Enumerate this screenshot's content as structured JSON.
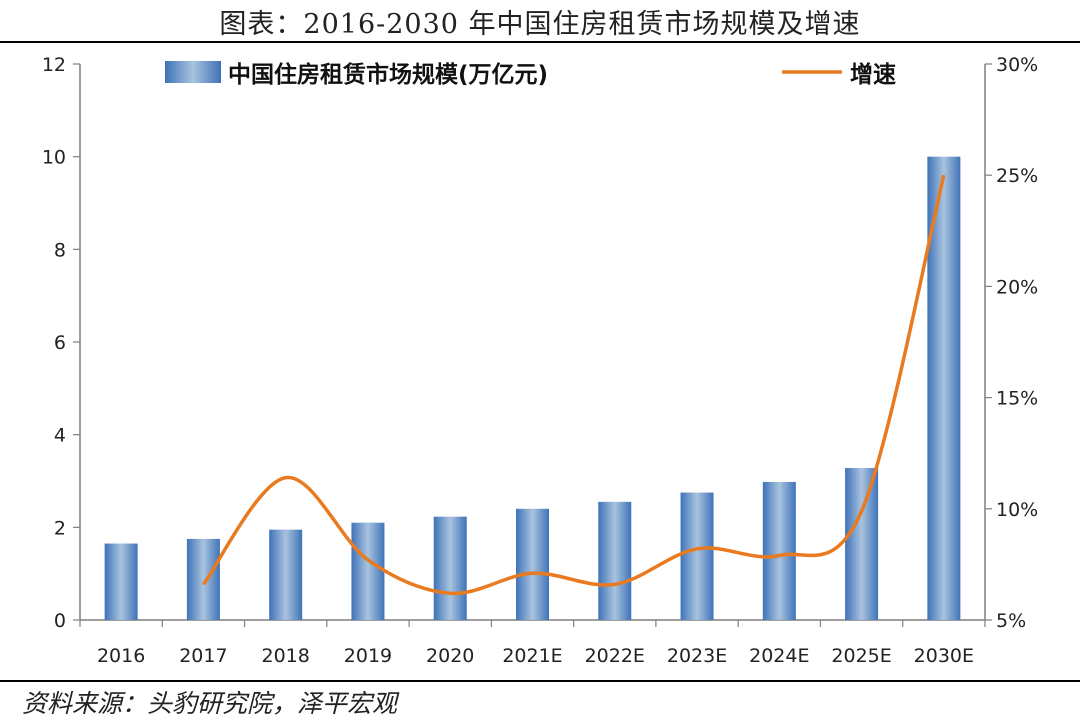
{
  "title": "图表：2016-2030 年中国住房租赁市场规模及增速",
  "source": "资料来源：头豹研究院，泽平宏观",
  "colors": {
    "bar": "#3f73b8",
    "bar_highlight": "#a9c3de",
    "line": "#e97a1f",
    "axis": "#7f7f7f"
  },
  "chart_data": {
    "type": "bar",
    "categories": [
      "2016",
      "2017",
      "2018",
      "2019",
      "2020",
      "2021E",
      "2022E",
      "2023E",
      "2024E",
      "2025E",
      "2030E"
    ],
    "series": [
      {
        "name": "中国住房租赁市场规模(万亿元)",
        "type": "bar",
        "axis": "left",
        "values": [
          1.65,
          1.75,
          1.95,
          2.1,
          2.23,
          2.4,
          2.55,
          2.75,
          2.98,
          3.28,
          10.0
        ]
      },
      {
        "name": "增速",
        "type": "line",
        "axis": "right",
        "values": [
          null,
          6.6,
          11.4,
          7.7,
          6.2,
          7.1,
          6.6,
          8.2,
          7.9,
          9.9,
          25.0
        ]
      }
    ],
    "y_left": {
      "range": [
        0,
        12
      ],
      "ticks": [
        "0",
        "2",
        "4",
        "6",
        "8",
        "10",
        "12"
      ]
    },
    "y_right": {
      "range": [
        5,
        30
      ],
      "ticks": [
        "5%",
        "10%",
        "15%",
        "20%",
        "25%",
        "30%"
      ]
    },
    "legend_position": "top",
    "grid": false
  }
}
